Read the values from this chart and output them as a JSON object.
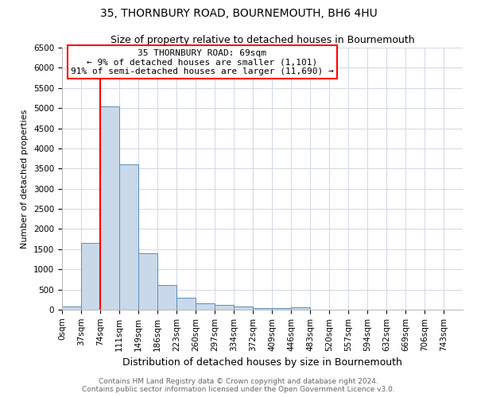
{
  "title": "35, THORNBURY ROAD, BOURNEMOUTH, BH6 4HU",
  "subtitle": "Size of property relative to detached houses in Bournemouth",
  "xlabel": "Distribution of detached houses by size in Bournemouth",
  "ylabel": "Number of detached properties",
  "footnote1": "Contains HM Land Registry data © Crown copyright and database right 2024.",
  "footnote2": "Contains public sector information licensed under the Open Government Licence v3.0.",
  "bar_labels": [
    "0sqm",
    "37sqm",
    "74sqm",
    "111sqm",
    "149sqm",
    "186sqm",
    "223sqm",
    "260sqm",
    "297sqm",
    "334sqm",
    "372sqm",
    "409sqm",
    "446sqm",
    "483sqm",
    "520sqm",
    "557sqm",
    "594sqm",
    "632sqm",
    "669sqm",
    "706sqm",
    "743sqm"
  ],
  "bar_values": [
    75,
    1650,
    5050,
    3600,
    1400,
    620,
    300,
    160,
    110,
    80,
    40,
    30,
    60,
    0,
    0,
    0,
    0,
    0,
    0,
    0,
    0
  ],
  "bar_color": "#c9d9ea",
  "bar_edge_color": "#5b8db8",
  "ylim": [
    0,
    6500
  ],
  "yticks": [
    0,
    500,
    1000,
    1500,
    2000,
    2500,
    3000,
    3500,
    4000,
    4500,
    5000,
    5500,
    6000,
    6500
  ],
  "annotation_title": "35 THORNBURY ROAD: 69sqm",
  "annotation_line1": "← 9% of detached houses are smaller (1,101)",
  "annotation_line2": "91% of semi-detached houses are larger (11,690) →",
  "grid_color": "#d0d8e4",
  "background_color": "#ffffff",
  "title_fontsize": 10,
  "subtitle_fontsize": 9,
  "ylabel_fontsize": 8,
  "xlabel_fontsize": 9,
  "tick_fontsize": 7.5,
  "footnote_fontsize": 6.5,
  "footnote_color": "#666666"
}
